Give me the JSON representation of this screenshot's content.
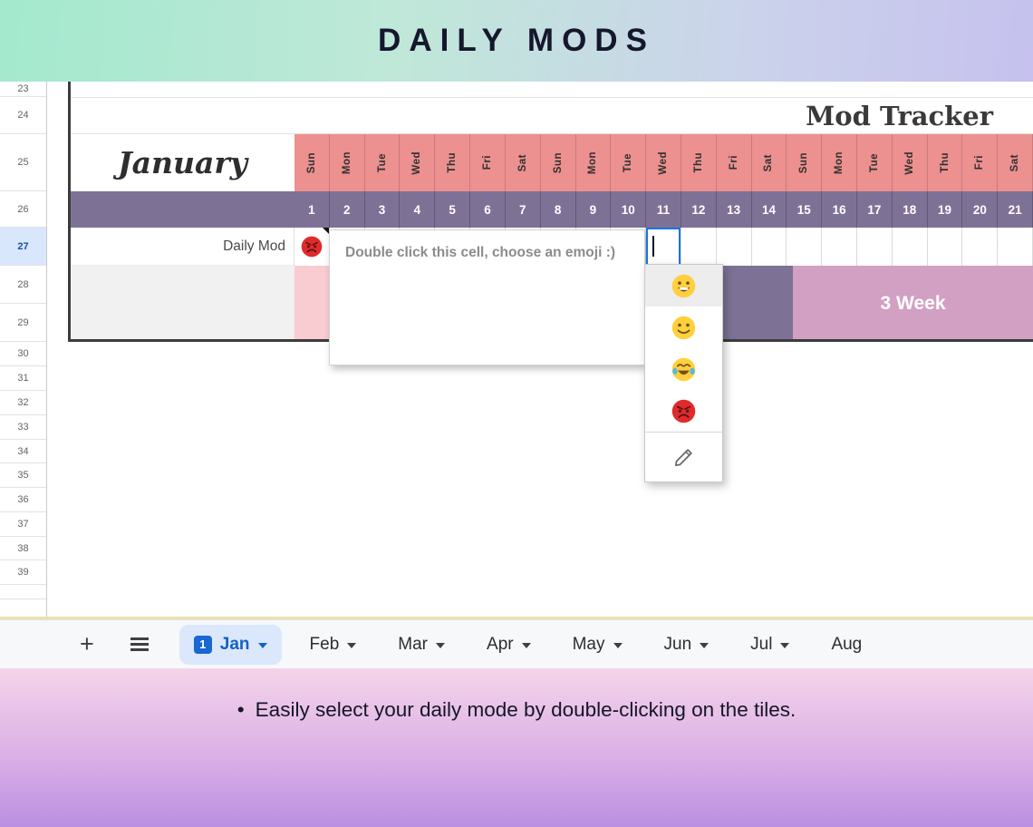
{
  "banner": {
    "title": "DAILY MODS"
  },
  "sheet": {
    "title": "Mod Tracker",
    "month": "January",
    "row_numbers": [
      "23",
      "24",
      "25",
      "26",
      "27",
      "28",
      "29",
      "30",
      "31",
      "32",
      "33",
      "34",
      "35",
      "36",
      "37",
      "38",
      "39",
      ""
    ],
    "selected_row": "27",
    "day_names": [
      "Sun",
      "Mon",
      "Tue",
      "Wed",
      "Thu",
      "Fri",
      "Sat",
      "Sun",
      "Mon",
      "Tue",
      "Wed",
      "Thu",
      "Fri",
      "Sat",
      "Sun",
      "Mon",
      "Tue",
      "Wed",
      "Thu",
      "Fri",
      "Sat"
    ],
    "dates": [
      "1",
      "2",
      "3",
      "4",
      "5",
      "6",
      "7",
      "8",
      "9",
      "10",
      "11",
      "12",
      "13",
      "14",
      "15",
      "16",
      "17",
      "18",
      "19",
      "20",
      "21"
    ],
    "daily_mod_label": "Daily Mod",
    "daily_mod_emoji": {
      "name": "angry-face",
      "char": "😡"
    },
    "selected_date": "11",
    "note_text": "Double click this cell, choose an emoji :)",
    "week_label": "3 Week"
  },
  "emoji_menu": {
    "items": [
      {
        "name": "grinning-face",
        "char": "😀",
        "highlighted": true
      },
      {
        "name": "slightly-smiling-face",
        "char": "🙂",
        "highlighted": false
      },
      {
        "name": "face-with-tears-of-joy",
        "char": "😂",
        "highlighted": false
      },
      {
        "name": "angry-face",
        "char": "😡",
        "highlighted": false
      }
    ],
    "edit_item": "pencil-icon"
  },
  "tabbar": {
    "add_button": "+",
    "tabs": [
      {
        "label": "Jan",
        "active": true,
        "badge": "1",
        "arrow": true
      },
      {
        "label": "Feb",
        "active": false,
        "arrow": true
      },
      {
        "label": "Mar",
        "active": false,
        "arrow": true
      },
      {
        "label": "Apr",
        "active": false,
        "arrow": true
      },
      {
        "label": "May",
        "active": false,
        "arrow": true
      },
      {
        "label": "Jun",
        "active": false,
        "arrow": true
      },
      {
        "label": "Jul",
        "active": false,
        "arrow": true
      },
      {
        "label": "Aug",
        "active": false,
        "arrow": false
      }
    ]
  },
  "footer": {
    "bullet": "•",
    "text": "Easily select your daily mode by double-clicking on the tiles."
  },
  "colors": {
    "day_header": "#ec9090",
    "date_bar": "#7d7296",
    "pink_cells": "#f8ccd1",
    "week_block": "#d2a0c2",
    "selection_blue": "#1a73e8",
    "active_tab_bg": "#dbe8fc",
    "active_tab_text": "#155fc4",
    "banner_gradient": [
      "#a3e9ce",
      "#c6c1ee"
    ],
    "footer_gradient": [
      "#f5d4e9",
      "#bb8fe2"
    ]
  }
}
